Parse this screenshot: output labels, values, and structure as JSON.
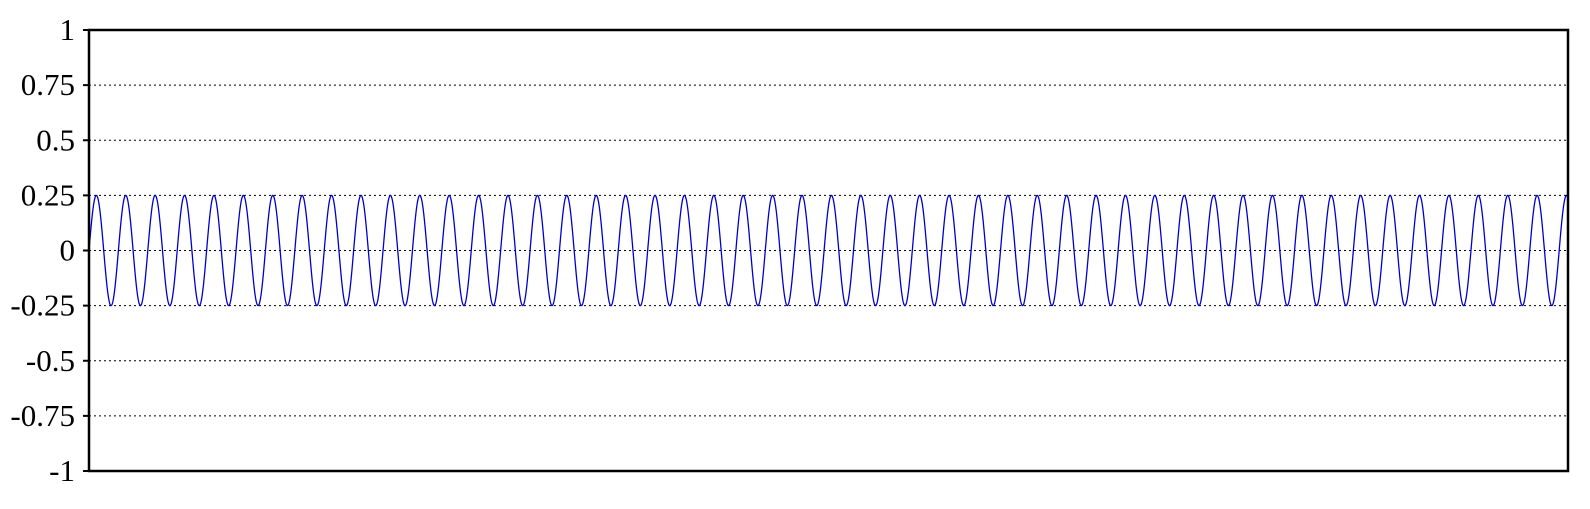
{
  "chart_data": {
    "type": "line",
    "title": "",
    "xlabel": "",
    "ylabel": "",
    "ylim": [
      -1,
      1
    ],
    "xlim": [
      0,
      50.3
    ],
    "grid": true,
    "y_ticks": [
      {
        "value": 1,
        "label": "1"
      },
      {
        "value": 0.75,
        "label": "0.75"
      },
      {
        "value": 0.5,
        "label": "0.5"
      },
      {
        "value": 0.25,
        "label": "0.25"
      },
      {
        "value": 0,
        "label": "0"
      },
      {
        "value": -0.25,
        "label": "-0.25"
      },
      {
        "value": -0.5,
        "label": "-0.5"
      },
      {
        "value": -0.75,
        "label": "-0.75"
      },
      {
        "value": -1,
        "label": "-1"
      }
    ],
    "series": [
      {
        "color": "#0000cc",
        "function": "sine",
        "amplitude": 0.25,
        "offset": 0,
        "cycles": 50.3
      }
    ]
  }
}
